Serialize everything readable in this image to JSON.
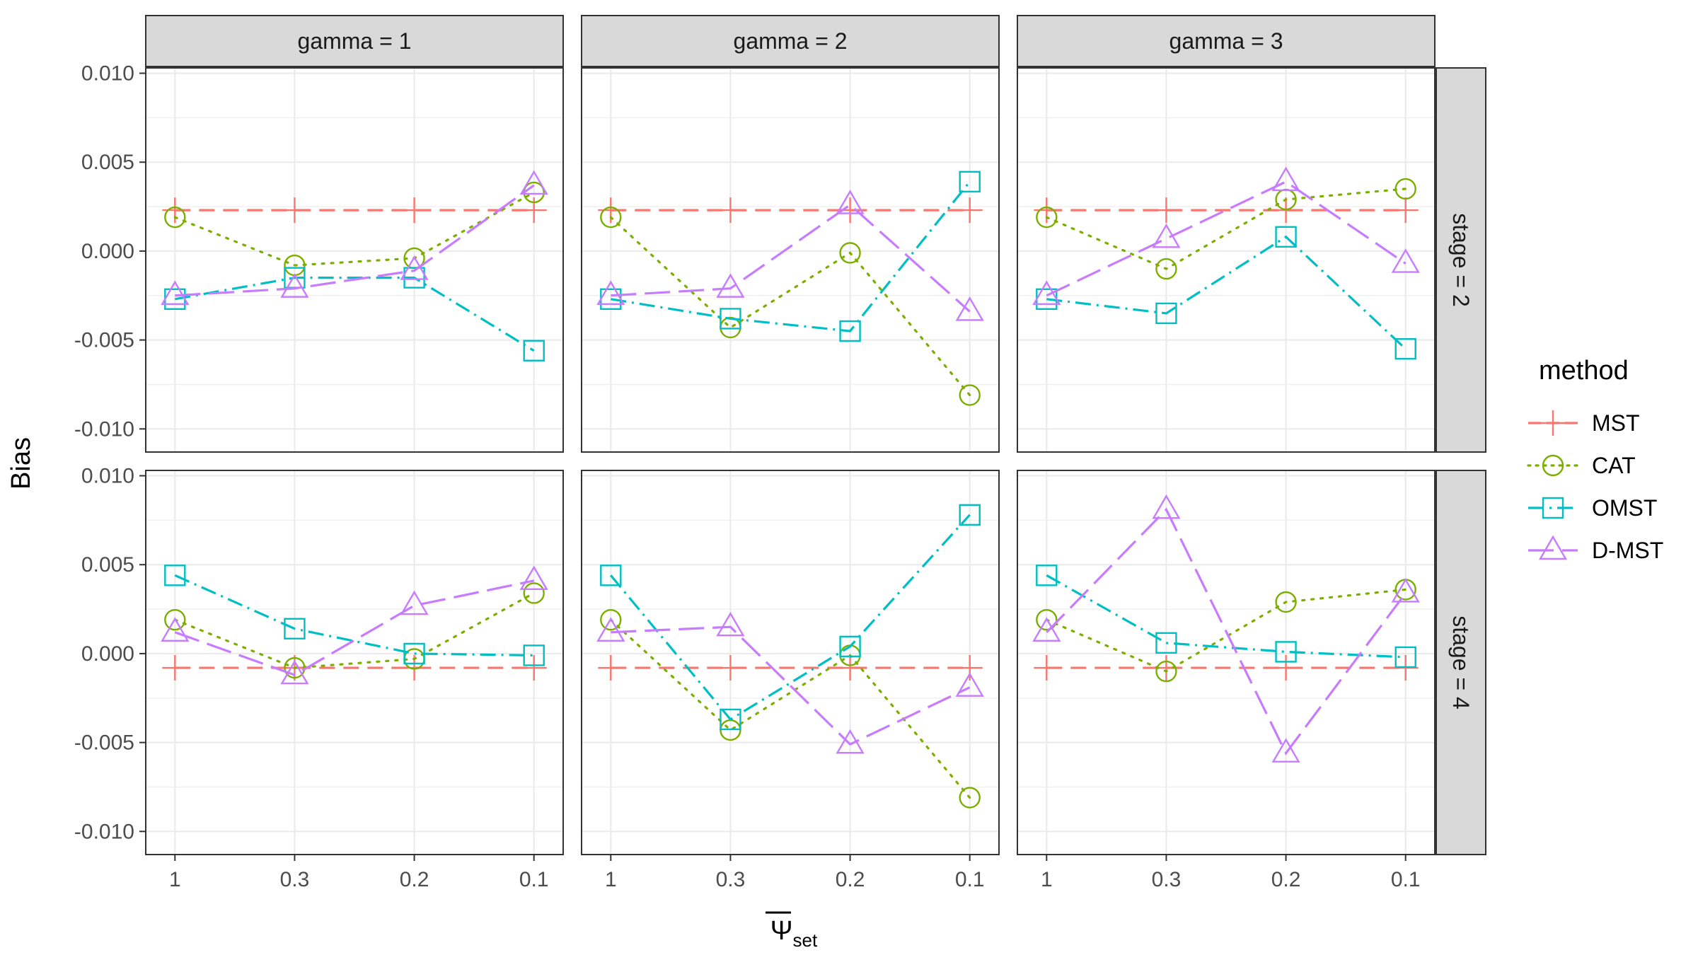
{
  "chart_data": {
    "type": "line",
    "facet_cols_var": "gamma",
    "facet_rows_var": "stage",
    "col_strips": [
      "gamma = 1",
      "gamma = 2",
      "gamma = 3"
    ],
    "row_strips": [
      "stage = 2",
      "stage = 4"
    ],
    "x_categories": [
      "1",
      "0.3",
      "0.2",
      "0.1"
    ],
    "y_ticks": [
      -0.01,
      -0.005,
      0.0,
      0.005,
      0.01
    ],
    "y_tick_labels": [
      "-0.010",
      "-0.005",
      "0.000",
      "0.005",
      "0.010"
    ],
    "ylim": [
      -0.0113,
      0.0103
    ],
    "ylabel": "Bias",
    "xlabel_main": "Ψ",
    "xlabel_sub": "set",
    "legend": {
      "title": "method",
      "placement": "right"
    },
    "series_styles": [
      {
        "name": "MST",
        "color": "#F8766D",
        "shape": "plus",
        "dash": "22 12"
      },
      {
        "name": "CAT",
        "color": "#7CAE00",
        "shape": "circle",
        "dash": "3 10"
      },
      {
        "name": "OMST",
        "color": "#00BFC4",
        "shape": "square",
        "dash": "22 8 3 8"
      },
      {
        "name": "D-MST",
        "color": "#C77CFF",
        "shape": "triangle",
        "dash": "36 12"
      }
    ],
    "panels": [
      {
        "row": 0,
        "col": 0,
        "series": [
          {
            "name": "MST",
            "values": [
              0.0023,
              0.0023,
              0.0023,
              0.0023
            ]
          },
          {
            "name": "CAT",
            "values": [
              0.0019,
              -0.0008,
              -0.0004,
              0.0033
            ]
          },
          {
            "name": "OMST",
            "values": [
              -0.0027,
              -0.0015,
              -0.0015,
              -0.0056
            ]
          },
          {
            "name": "D-MST",
            "values": [
              -0.0025,
              -0.0021,
              -0.0011,
              0.0037
            ]
          }
        ]
      },
      {
        "row": 0,
        "col": 1,
        "series": [
          {
            "name": "MST",
            "values": [
              0.0023,
              0.0023,
              0.0023,
              0.0023
            ]
          },
          {
            "name": "CAT",
            "values": [
              0.0019,
              -0.0043,
              -0.0001,
              -0.0081
            ]
          },
          {
            "name": "OMST",
            "values": [
              -0.0027,
              -0.0038,
              -0.0045,
              0.0039
            ]
          },
          {
            "name": "D-MST",
            "values": [
              -0.0025,
              -0.0021,
              0.0026,
              -0.0034
            ]
          }
        ]
      },
      {
        "row": 0,
        "col": 2,
        "series": [
          {
            "name": "MST",
            "values": [
              0.0023,
              0.0023,
              0.0023,
              0.0023
            ]
          },
          {
            "name": "CAT",
            "values": [
              0.0019,
              -0.001,
              0.0029,
              0.0035
            ]
          },
          {
            "name": "OMST",
            "values": [
              -0.0027,
              -0.0035,
              0.0008,
              -0.0055
            ]
          },
          {
            "name": "D-MST",
            "values": [
              -0.0025,
              0.0007,
              0.0039,
              -0.0007
            ]
          }
        ]
      },
      {
        "row": 1,
        "col": 0,
        "series": [
          {
            "name": "MST",
            "values": [
              -0.0008,
              -0.0008,
              -0.0008,
              -0.0008
            ]
          },
          {
            "name": "CAT",
            "values": [
              0.0019,
              -0.0008,
              -0.0003,
              0.0034
            ]
          },
          {
            "name": "OMST",
            "values": [
              0.0044,
              0.0014,
              0.0,
              -0.0001
            ]
          },
          {
            "name": "D-MST",
            "values": [
              0.0012,
              -0.0012,
              0.0027,
              0.0041
            ]
          }
        ]
      },
      {
        "row": 1,
        "col": 1,
        "series": [
          {
            "name": "MST",
            "values": [
              -0.0008,
              -0.0008,
              -0.0008,
              -0.0008
            ]
          },
          {
            "name": "CAT",
            "values": [
              0.0019,
              -0.0043,
              -0.0001,
              -0.0081
            ]
          },
          {
            "name": "OMST",
            "values": [
              0.0044,
              -0.0037,
              0.0004,
              0.0078
            ]
          },
          {
            "name": "D-MST",
            "values": [
              0.0012,
              0.0015,
              -0.0051,
              -0.0019
            ]
          }
        ]
      },
      {
        "row": 1,
        "col": 2,
        "series": [
          {
            "name": "MST",
            "values": [
              -0.0008,
              -0.0008,
              -0.0008,
              -0.0008
            ]
          },
          {
            "name": "CAT",
            "values": [
              0.0019,
              -0.001,
              0.0029,
              0.0036
            ]
          },
          {
            "name": "OMST",
            "values": [
              0.0044,
              0.0006,
              0.0001,
              -0.0002
            ]
          },
          {
            "name": "D-MST",
            "values": [
              0.0012,
              0.0081,
              -0.0056,
              0.0034
            ]
          }
        ]
      }
    ]
  }
}
